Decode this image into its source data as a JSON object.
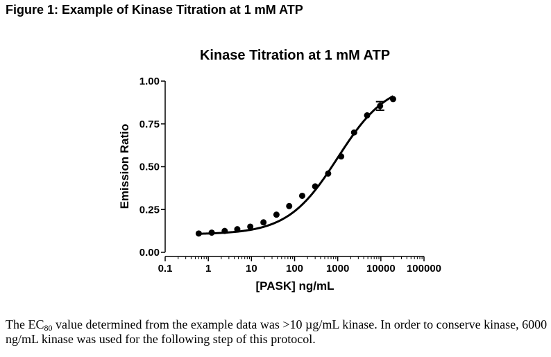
{
  "figure_title": "Figure 1: Example of Kinase Titration at 1 mM ATP",
  "caption": {
    "part1": "The EC",
    "subscript": "80",
    "part2": " value determined from the example data was >10 µg/mL kinase.  In order to conserve kinase, 6000 ng/mL kinase was used for the following step of this protocol."
  },
  "chart_data": {
    "type": "scatter",
    "title": "Kinase Titration at 1 mM ATP",
    "xlabel": "[PASK] ng/mL",
    "ylabel": "Emission Ratio",
    "xscale": "log",
    "xlim": [
      0.1,
      100000
    ],
    "ylim": [
      0,
      1.0
    ],
    "xticks": [
      0.1,
      1,
      10,
      100,
      1000,
      10000,
      100000
    ],
    "xtick_labels": [
      "0.1",
      "1",
      "10",
      "100",
      "1000",
      "10000",
      "100000"
    ],
    "yticks": [
      0,
      0.25,
      0.5,
      0.75,
      1.0
    ],
    "ytick_labels": [
      "0.00",
      "0.25",
      "0.50",
      "0.75",
      "1.00"
    ],
    "grid": false,
    "series": [
      {
        "x": [
          0.6,
          1.2,
          2.4,
          4.7,
          9.4,
          19,
          38,
          75,
          150,
          300,
          600,
          1200,
          2400,
          4800,
          9600,
          19200
        ],
        "y": [
          0.11,
          0.115,
          0.125,
          0.135,
          0.15,
          0.175,
          0.22,
          0.27,
          0.33,
          0.385,
          0.46,
          0.56,
          0.7,
          0.8,
          0.855,
          0.895
        ],
        "yerr": [
          0,
          0,
          0,
          0,
          0,
          0,
          0,
          0,
          0,
          0,
          0,
          0,
          0,
          0,
          0.025,
          0
        ]
      }
    ],
    "fit": {
      "type": "4PL",
      "bottom": 0.105,
      "top": 1.0,
      "ec50": 1000,
      "hill": 0.75,
      "x_range": [
        0.6,
        19200
      ]
    }
  }
}
